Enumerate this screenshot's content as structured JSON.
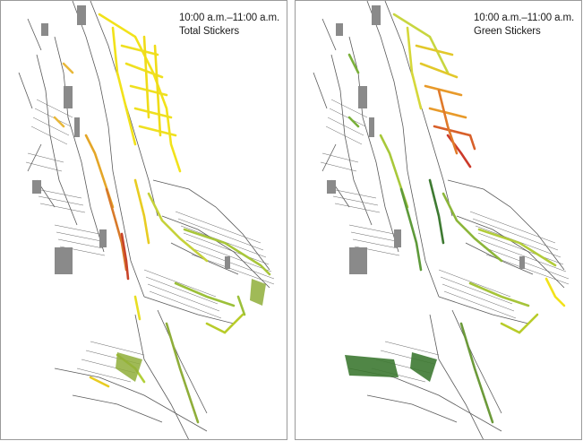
{
  "panels": [
    {
      "time_label": "10:00 a.m.–11:00 a.m.",
      "layer_label": "Total Stickers",
      "dominant_colors": [
        "#f2e21a",
        "#e0b020",
        "#cc4a2a",
        "#aac832",
        "#7a9e3a"
      ]
    },
    {
      "time_label": "10:00 a.m.–11:00 a.m.",
      "layer_label": "Green Stickers",
      "dominant_colors": [
        "#c8d640",
        "#e07a2a",
        "#cc3a2a",
        "#5e9a3a",
        "#3e7a32"
      ]
    }
  ],
  "colors": {
    "street_line": "#555555",
    "building_fill": "#8a8a8a",
    "panel_border": "#9a9a9a"
  }
}
